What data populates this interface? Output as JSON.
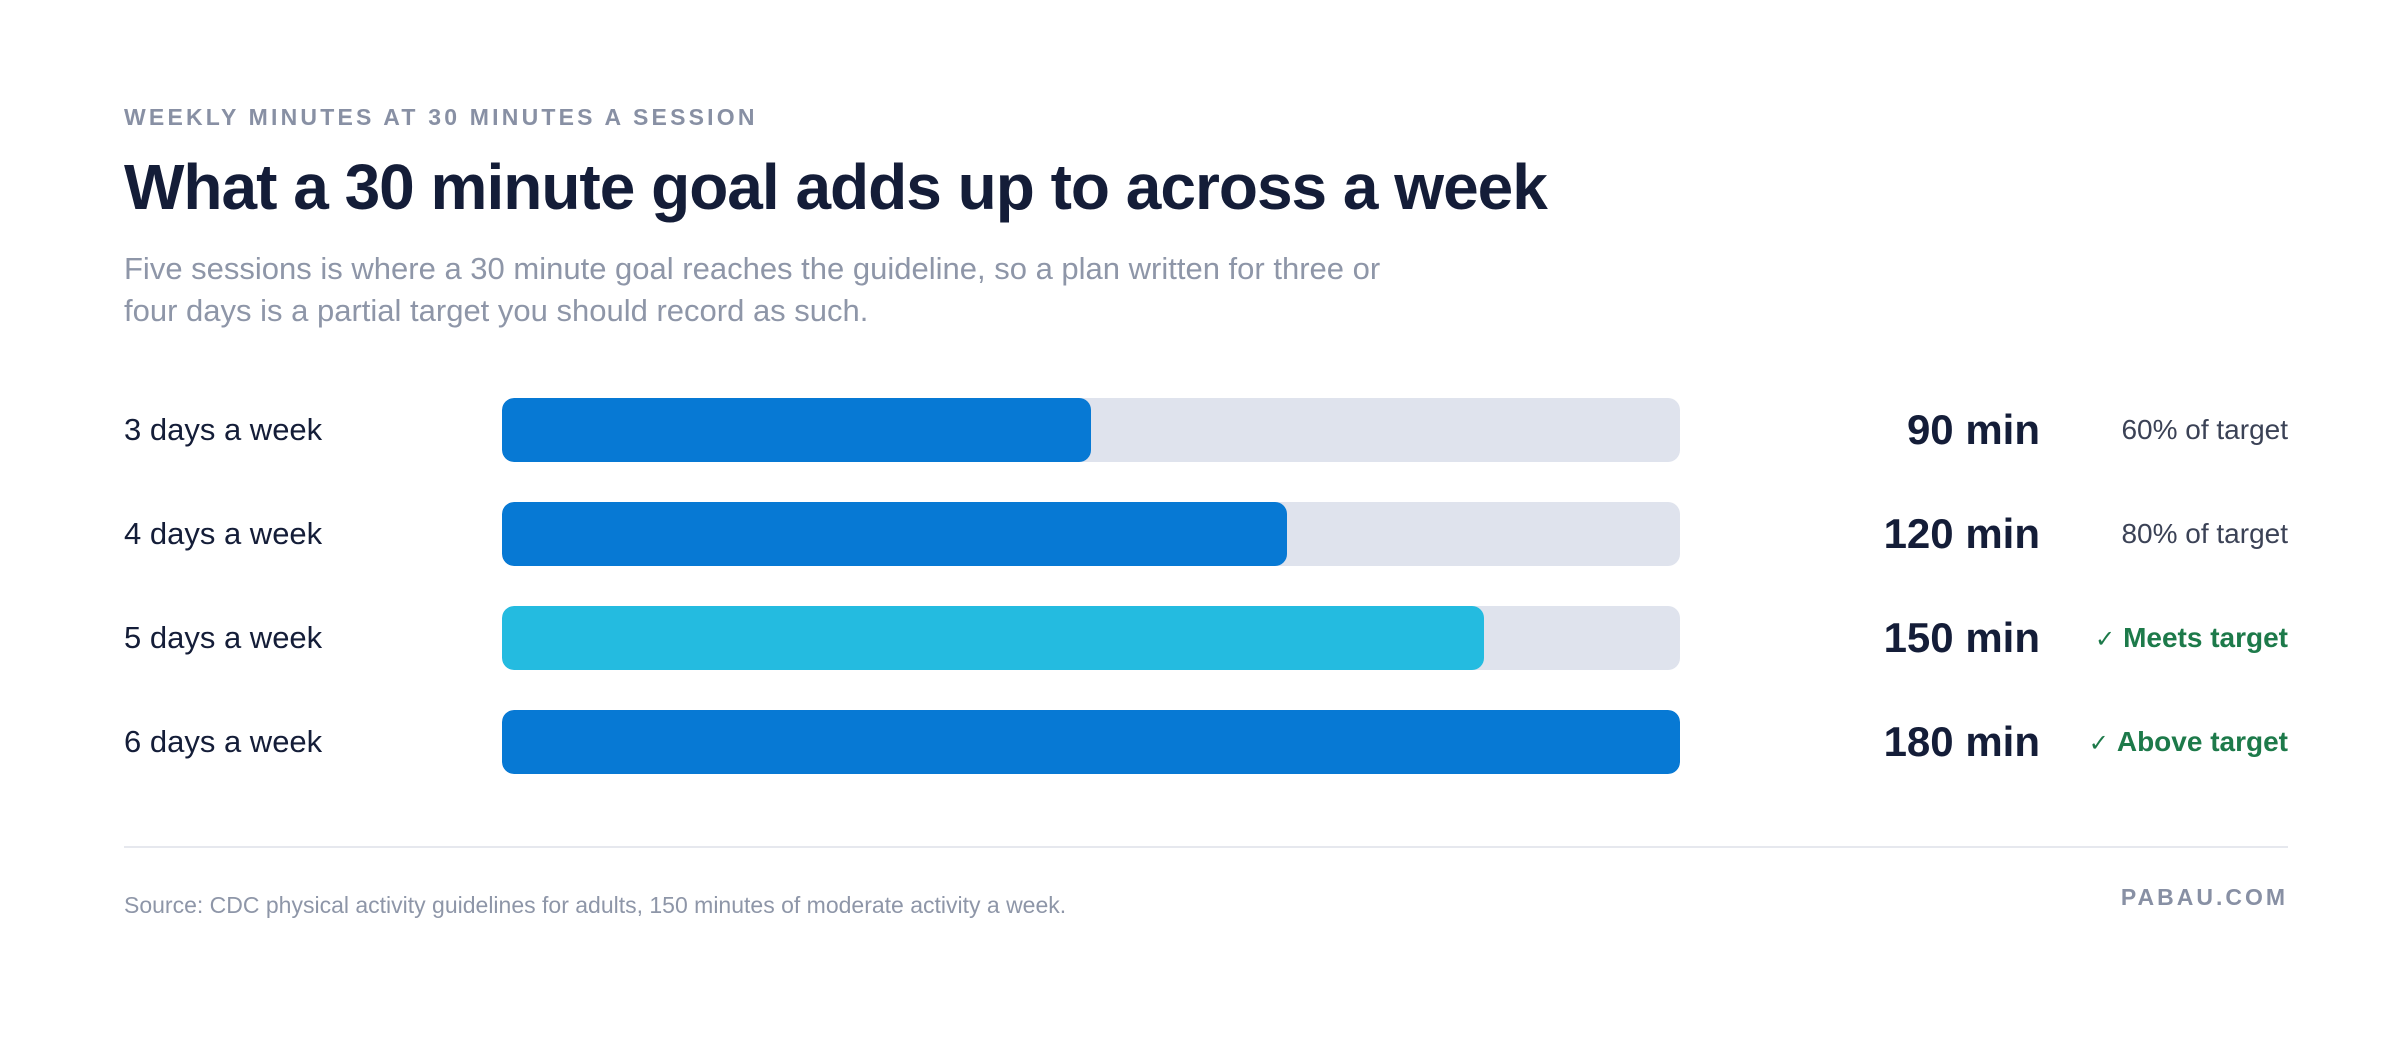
{
  "header": {
    "eyebrow": "WEEKLY MINUTES AT 30 MINUTES A SESSION",
    "title": "What a 30 minute goal adds up to across a week",
    "subtitle": "Five sessions is where a 30 minute goal reaches the guideline, so a plan written for three or four days is a partial target you should record as such."
  },
  "chart_data": {
    "type": "bar",
    "orientation": "horizontal",
    "categories": [
      "3 days a week",
      "4 days a week",
      "5 days a week",
      "6 days a week"
    ],
    "values": [
      90,
      120,
      150,
      180
    ],
    "value_labels": [
      "90 min",
      "120 min",
      "150 min",
      "180 min"
    ],
    "unit": "min",
    "xlim": [
      0,
      180
    ],
    "status_labels": [
      "60% of target",
      "80% of target",
      "Meets target",
      "Above target"
    ],
    "meets_target": [
      false,
      false,
      true,
      true
    ],
    "bar_colors": [
      "#0779d4",
      "#0779d4",
      "#24bbe0",
      "#0779d4"
    ],
    "track_color": "#dfe3ed",
    "grid": false
  },
  "colors": {
    "bar": "#0779d4",
    "bar_highlight": "#24bbe0",
    "track": "#dfe3ed",
    "status_ok": "#1d7a4a",
    "text": "#141d38",
    "muted": "#8e96a8"
  },
  "icons": {
    "check": "check-icon"
  },
  "footer": {
    "source": "Source: CDC physical activity guidelines for adults, 150 minutes of moderate activity a week.",
    "brand": "PABAU.COM"
  }
}
